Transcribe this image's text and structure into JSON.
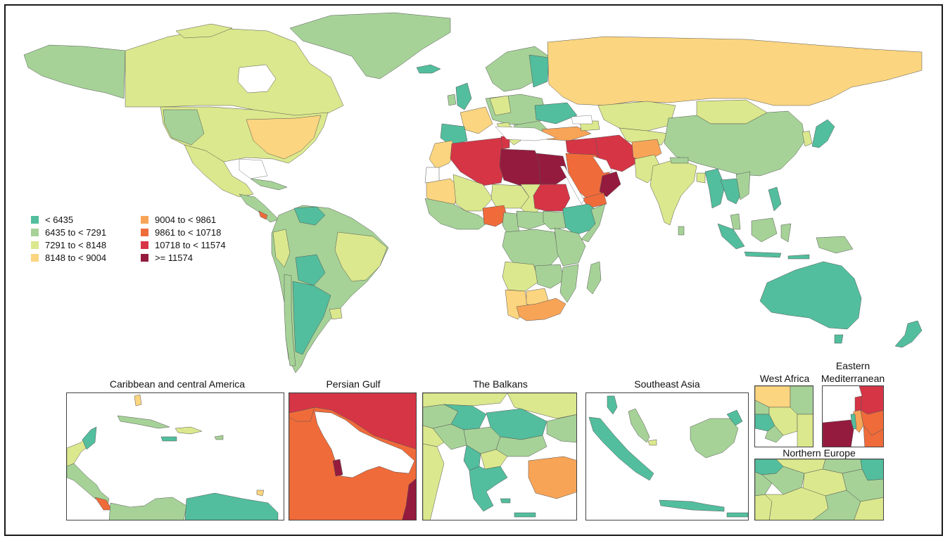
{
  "colors": {
    "c1": "#52be9d",
    "c2": "#a6d297",
    "c3": "#dbe88d",
    "c4": "#fbd57f",
    "c5": "#f8a457",
    "c6": "#f06b3a",
    "c7": "#d63546",
    "c8": "#951b3e"
  },
  "legend": [
    {
      "label": "< 6435",
      "color": "#52be9d"
    },
    {
      "label": "6435 to < 7291",
      "color": "#a6d297"
    },
    {
      "label": "7291 to < 8148",
      "color": "#dbe88d"
    },
    {
      "label": "8148 to < 9004",
      "color": "#fbd57f"
    },
    {
      "label": "9004 to < 9861",
      "color": "#f8a457"
    },
    {
      "label": "9861 to < 10718",
      "color": "#f06b3a"
    },
    {
      "label": "10718 to < 11574",
      "color": "#d63546"
    },
    {
      "label": ">= 11574",
      "color": "#951b3e"
    }
  ],
  "insets": {
    "caribbean": "Caribbean and central America",
    "persian_gulf": "Persian Gulf",
    "balkans": "The Balkans",
    "southeast_asia": "Southeast Asia",
    "west_africa": "West Africa",
    "eastern_mediterranean_line1": "Eastern",
    "eastern_mediterranean_line2": "Mediterranean",
    "northern_europe": "Northern Europe"
  }
}
